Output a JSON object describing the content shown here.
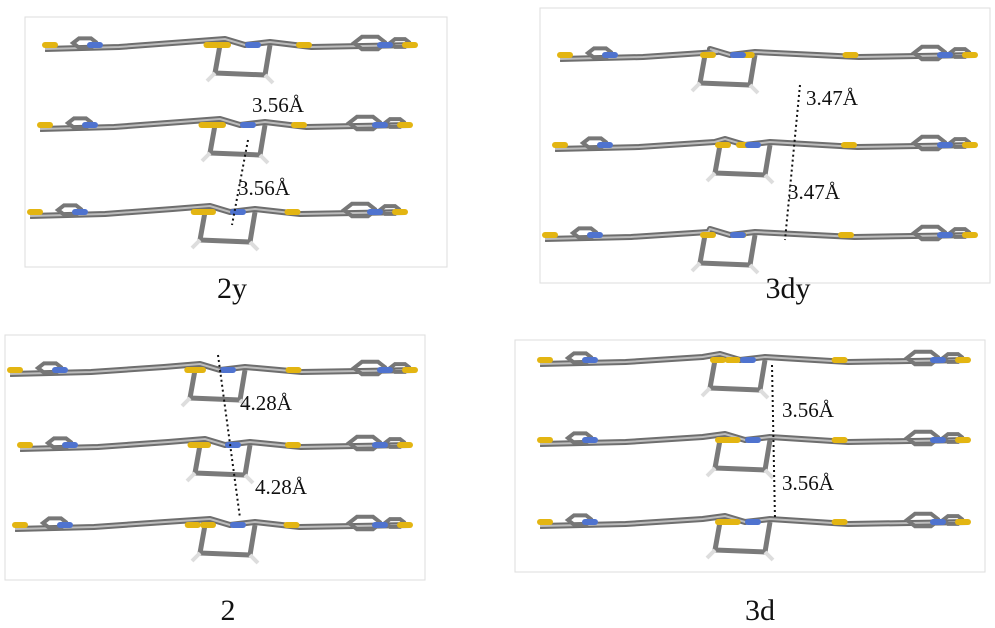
{
  "panels": [
    {
      "label": "2y",
      "distances": [
        "3.56Å",
        "3.56Å"
      ]
    },
    {
      "label": "3dy",
      "distances": [
        "3.47Å",
        "3.47Å"
      ]
    },
    {
      "label": "2",
      "distances": [
        "4.28Å",
        "4.28Å"
      ]
    },
    {
      "label": "3d",
      "distances": [
        "3.56Å",
        "3.56Å"
      ]
    }
  ]
}
